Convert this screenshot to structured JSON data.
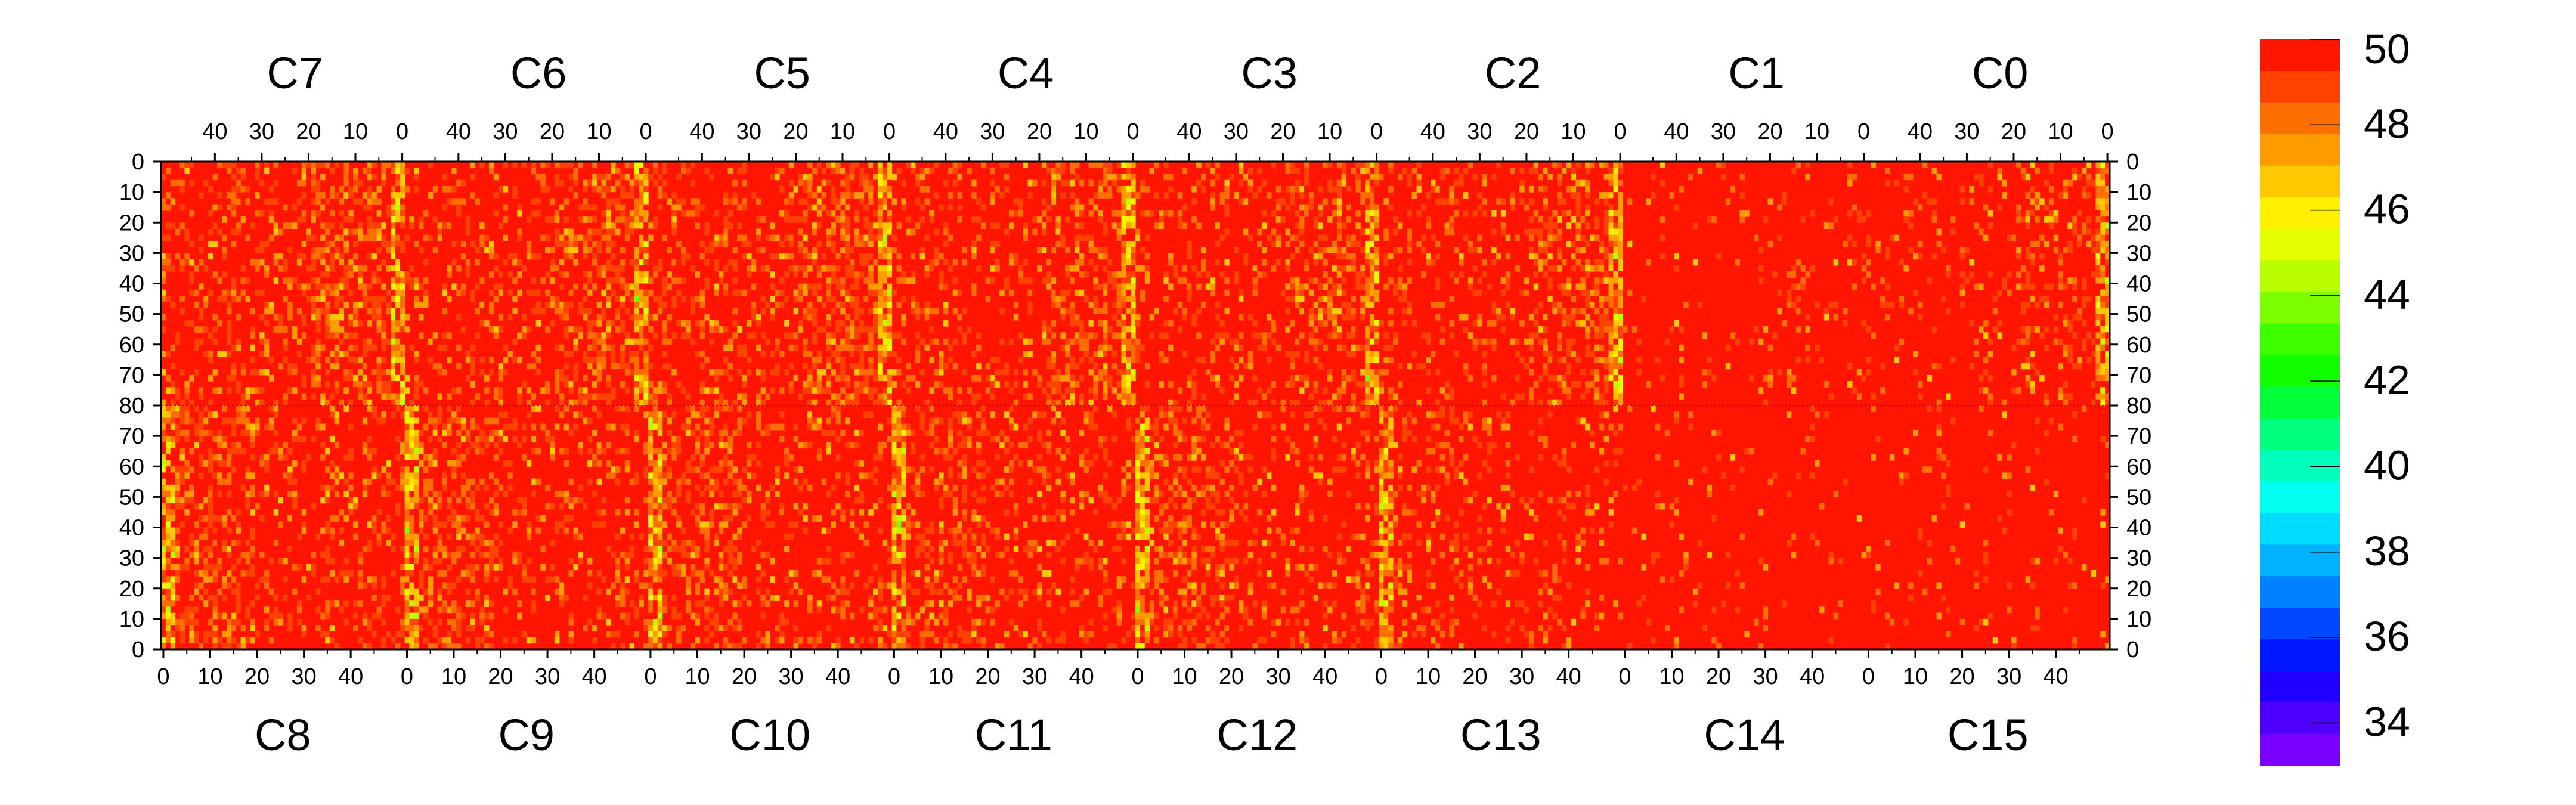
{
  "chart_data": {
    "type": "heatmap",
    "title": "",
    "xlabel": "",
    "ylabel": "",
    "top_chips": [
      "C7",
      "C6",
      "C5",
      "C4",
      "C3",
      "C2",
      "C1",
      "C0"
    ],
    "bottom_chips": [
      "C8",
      "C9",
      "C10",
      "C11",
      "C12",
      "C13",
      "C14",
      "C15"
    ],
    "chip_columns": 52,
    "chip_rows": 80,
    "x_ticks_top": [
      "40",
      "30",
      "20",
      "10",
      "0"
    ],
    "x_ticks_bottom": [
      "0",
      "10",
      "20",
      "30",
      "40"
    ],
    "y_ticks_top_half": [
      "0",
      "10",
      "20",
      "30",
      "40",
      "50",
      "60",
      "70",
      "80"
    ],
    "y_ticks_bottom_half": [
      "70",
      "60",
      "50",
      "40",
      "30",
      "20",
      "10",
      "0"
    ],
    "z_range": [
      33,
      50
    ],
    "colorbar_labels": [
      "50",
      "48",
      "46",
      "44",
      "42",
      "40",
      "38",
      "36",
      "34"
    ],
    "colorbar_colors": [
      "#ff1500",
      "#ff4200",
      "#ff6e00",
      "#ff9d00",
      "#ffc800",
      "#fff000",
      "#e4ff00",
      "#b9ff00",
      "#7cff00",
      "#3cff00",
      "#12ff00",
      "#00ff38",
      "#00ff7c",
      "#00ffba",
      "#00fff0",
      "#00dcff",
      "#00b2ff",
      "#0082ff",
      "#0048ff",
      "#0018ff",
      "#2200ff",
      "#4e00ff",
      "#7a00ff"
    ],
    "summary": {
      "dominant_value": 50,
      "hot_columns_value_range": [
        44,
        48
      ],
      "hot_columns": "chip edge columns near x = 0 (boundaries C7/C6, C6/C5, C5/C4, C4/C3, C3/C2, right edge of C0) and left edges of C8-C13",
      "uniform_region": "C13 right half, C14, C1, C0 interior mostly 50",
      "grid": false,
      "legend": "colorbar right"
    }
  }
}
